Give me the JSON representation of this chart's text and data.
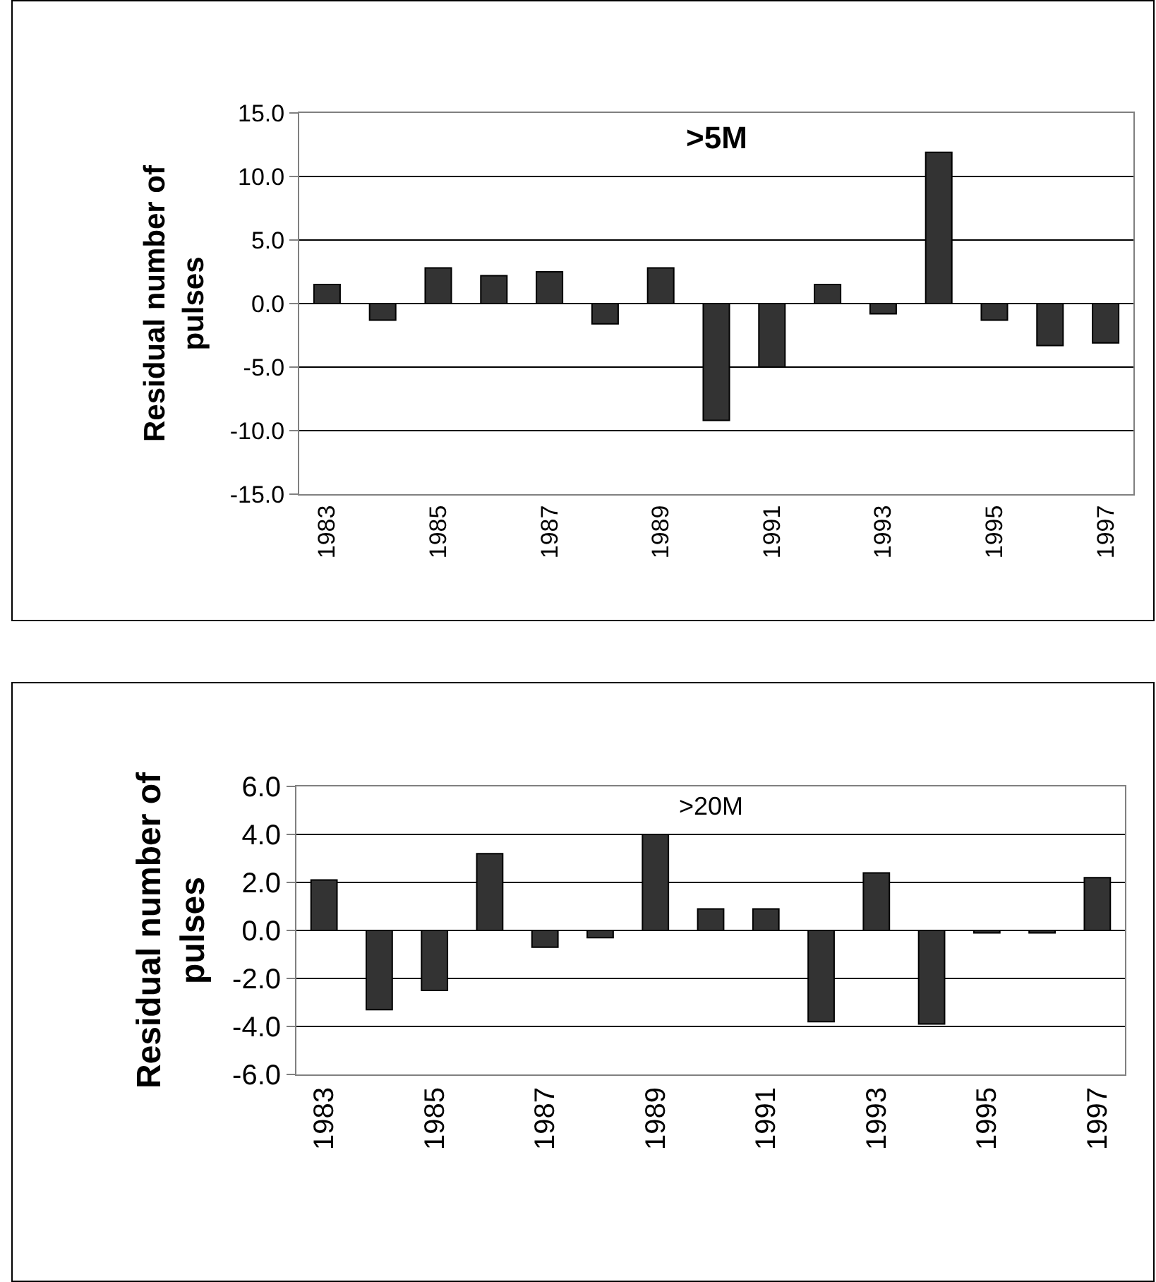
{
  "chart_data": [
    {
      "type": "bar",
      "title": ">5M",
      "ylabel": "Residual number of pulses",
      "categories": [
        "1983",
        null,
        "1985",
        null,
        "1987",
        null,
        "1989",
        null,
        "1991",
        null,
        "1993",
        null,
        "1995",
        null,
        "1997"
      ],
      "values": [
        1.5,
        -1.3,
        2.8,
        2.2,
        2.5,
        -1.6,
        2.8,
        -9.2,
        -5.0,
        1.5,
        -0.8,
        11.9,
        -1.3,
        -3.3,
        -3.1
      ],
      "color": "#333333",
      "ylim": [
        -15,
        15
      ],
      "yticks": [
        {
          "value": -15,
          "label": "-15.0"
        },
        {
          "value": -10,
          "label": "-10.0"
        },
        {
          "value": -5,
          "label": "-5.0"
        },
        {
          "value": 0,
          "label": "0.0"
        },
        {
          "value": 5,
          "label": "5.0"
        },
        {
          "value": 10,
          "label": "10.0"
        },
        {
          "value": 15,
          "label": "15.0"
        }
      ],
      "grid": "y"
    },
    {
      "type": "bar",
      "title": ">20M",
      "ylabel": "Residual number of pulses",
      "categories": [
        "1983",
        null,
        "1985",
        null,
        "1987",
        null,
        "1989",
        null,
        "1991",
        null,
        "1993",
        null,
        "1995",
        null,
        "1997"
      ],
      "values": [
        2.1,
        -3.3,
        -2.5,
        3.2,
        -0.7,
        -0.3,
        4.0,
        0.9,
        0.9,
        -3.8,
        2.4,
        -3.9,
        -0.1,
        -0.1,
        2.2
      ],
      "color": "#333333",
      "ylim": [
        -6,
        6
      ],
      "yticks": [
        {
          "value": -6,
          "label": "-6.0"
        },
        {
          "value": -4,
          "label": "-4.0"
        },
        {
          "value": -2,
          "label": "-2.0"
        },
        {
          "value": 0,
          "label": "0.0"
        },
        {
          "value": 2,
          "label": "2.0"
        },
        {
          "value": 4,
          "label": "4.0"
        },
        {
          "value": 6,
          "label": "6.0"
        }
      ],
      "grid": "y"
    }
  ]
}
